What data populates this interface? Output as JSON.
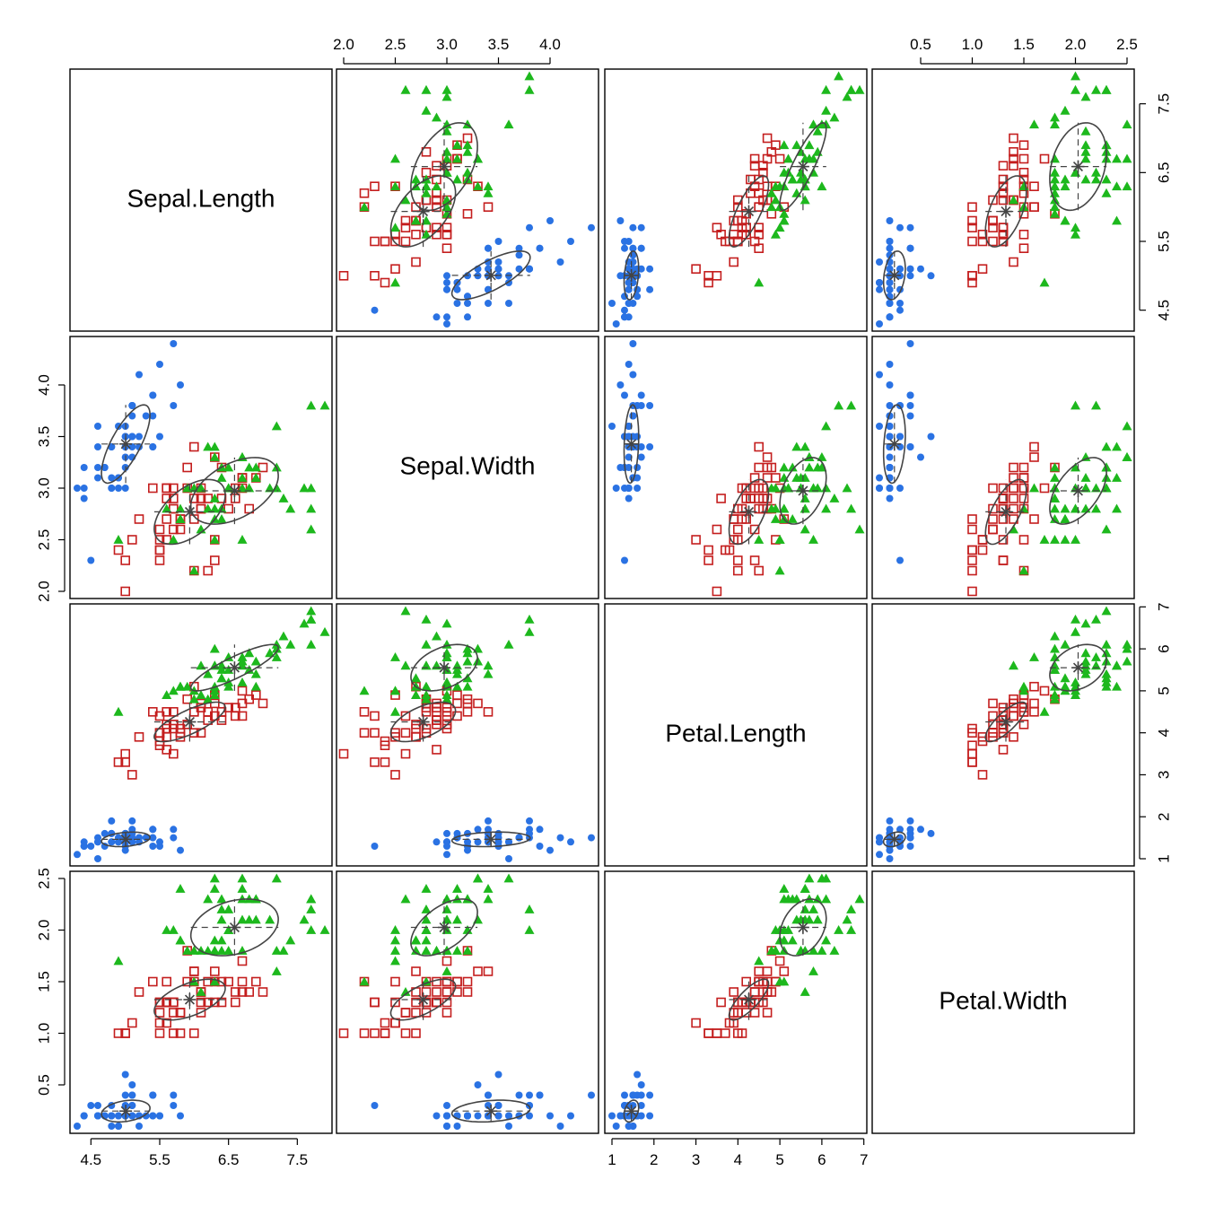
{
  "chart_data": {
    "type": "scatter-matrix",
    "variables": [
      "Sepal.Length",
      "Sepal.Width",
      "Petal.Length",
      "Petal.Width"
    ],
    "ranges": {
      "Sepal.Length": [
        4.3,
        7.9
      ],
      "Sepal.Width": [
        2.0,
        4.4
      ],
      "Petal.Length": [
        1.0,
        6.9
      ],
      "Petal.Width": [
        0.1,
        2.5
      ]
    },
    "ticks": {
      "Sepal.Length": [
        "4.5",
        "5.5",
        "6.5",
        "7.5"
      ],
      "Sepal.Width": [
        "2.0",
        "2.5",
        "3.0",
        "3.5",
        "4.0"
      ],
      "Petal.Length": [
        "1",
        "2",
        "3",
        "4",
        "5",
        "6",
        "7"
      ],
      "Petal.Width": [
        "0.5",
        "1.0",
        "1.5",
        "2.0",
        "2.5"
      ]
    },
    "axis_placement": {
      "Sepal.Length": [
        "bottom",
        "right"
      ],
      "Sepal.Width": [
        "top",
        "left"
      ],
      "Petal.Length": [
        "bottom",
        "right"
      ],
      "Petal.Width": [
        "top",
        "left"
      ]
    },
    "grid": false,
    "legend": "none",
    "series": [
      {
        "marker": "filled-circle",
        "color": "#2A72E3",
        "centroid": [
          5.006,
          3.428,
          1.462,
          0.246
        ],
        "points": [
          [
            5.1,
            3.5,
            1.4,
            0.2
          ],
          [
            4.9,
            3.0,
            1.4,
            0.2
          ],
          [
            4.7,
            3.2,
            1.3,
            0.2
          ],
          [
            4.6,
            3.1,
            1.5,
            0.2
          ],
          [
            5.0,
            3.6,
            1.4,
            0.2
          ],
          [
            5.4,
            3.9,
            1.7,
            0.4
          ],
          [
            4.6,
            3.4,
            1.4,
            0.3
          ],
          [
            5.0,
            3.4,
            1.5,
            0.2
          ],
          [
            4.4,
            2.9,
            1.4,
            0.2
          ],
          [
            4.9,
            3.1,
            1.5,
            0.1
          ],
          [
            5.4,
            3.7,
            1.5,
            0.2
          ],
          [
            4.8,
            3.4,
            1.6,
            0.2
          ],
          [
            4.8,
            3.0,
            1.4,
            0.1
          ],
          [
            4.3,
            3.0,
            1.1,
            0.1
          ],
          [
            5.8,
            4.0,
            1.2,
            0.2
          ],
          [
            5.7,
            4.4,
            1.5,
            0.4
          ],
          [
            5.4,
            3.9,
            1.3,
            0.4
          ],
          [
            5.1,
            3.5,
            1.4,
            0.3
          ],
          [
            5.7,
            3.8,
            1.7,
            0.3
          ],
          [
            5.1,
            3.8,
            1.5,
            0.3
          ],
          [
            5.4,
            3.4,
            1.7,
            0.2
          ],
          [
            5.1,
            3.7,
            1.5,
            0.4
          ],
          [
            4.6,
            3.6,
            1.0,
            0.2
          ],
          [
            5.1,
            3.3,
            1.7,
            0.5
          ],
          [
            4.8,
            3.4,
            1.9,
            0.2
          ],
          [
            5.0,
            3.0,
            1.6,
            0.2
          ],
          [
            5.0,
            3.4,
            1.6,
            0.4
          ],
          [
            5.2,
            3.5,
            1.5,
            0.2
          ],
          [
            5.2,
            3.4,
            1.4,
            0.2
          ],
          [
            4.7,
            3.2,
            1.6,
            0.2
          ],
          [
            4.8,
            3.1,
            1.6,
            0.2
          ],
          [
            5.4,
            3.4,
            1.5,
            0.4
          ],
          [
            5.2,
            4.1,
            1.5,
            0.1
          ],
          [
            5.5,
            4.2,
            1.4,
            0.2
          ],
          [
            4.9,
            3.1,
            1.5,
            0.2
          ],
          [
            5.0,
            3.2,
            1.2,
            0.2
          ],
          [
            5.5,
            3.5,
            1.3,
            0.2
          ],
          [
            4.9,
            3.6,
            1.4,
            0.1
          ],
          [
            4.4,
            3.0,
            1.3,
            0.2
          ],
          [
            5.1,
            3.4,
            1.5,
            0.2
          ],
          [
            5.0,
            3.5,
            1.3,
            0.3
          ],
          [
            4.5,
            2.3,
            1.3,
            0.3
          ],
          [
            4.4,
            3.2,
            1.3,
            0.2
          ],
          [
            5.0,
            3.5,
            1.6,
            0.6
          ],
          [
            5.1,
            3.8,
            1.9,
            0.4
          ],
          [
            4.8,
            3.0,
            1.4,
            0.3
          ],
          [
            5.1,
            3.8,
            1.6,
            0.2
          ],
          [
            4.6,
            3.2,
            1.4,
            0.2
          ],
          [
            5.3,
            3.7,
            1.5,
            0.2
          ],
          [
            5.0,
            3.3,
            1.4,
            0.2
          ]
        ]
      },
      {
        "marker": "open-square",
        "color": "#C41E1E",
        "centroid": [
          5.936,
          2.77,
          4.26,
          1.326
        ],
        "points": [
          [
            7.0,
            3.2,
            4.7,
            1.4
          ],
          [
            6.4,
            3.2,
            4.5,
            1.5
          ],
          [
            6.9,
            3.1,
            4.9,
            1.5
          ],
          [
            5.5,
            2.3,
            4.0,
            1.3
          ],
          [
            6.5,
            2.8,
            4.6,
            1.5
          ],
          [
            5.7,
            2.8,
            4.5,
            1.3
          ],
          [
            6.3,
            3.3,
            4.7,
            1.6
          ],
          [
            4.9,
            2.4,
            3.3,
            1.0
          ],
          [
            6.6,
            2.9,
            4.6,
            1.3
          ],
          [
            5.2,
            2.7,
            3.9,
            1.4
          ],
          [
            5.0,
            2.0,
            3.5,
            1.0
          ],
          [
            5.9,
            3.0,
            4.2,
            1.5
          ],
          [
            6.0,
            2.2,
            4.0,
            1.0
          ],
          [
            6.1,
            2.9,
            4.7,
            1.4
          ],
          [
            5.6,
            2.9,
            3.6,
            1.3
          ],
          [
            6.7,
            3.1,
            4.4,
            1.4
          ],
          [
            5.6,
            3.0,
            4.5,
            1.5
          ],
          [
            5.8,
            2.7,
            4.1,
            1.0
          ],
          [
            6.2,
            2.2,
            4.5,
            1.5
          ],
          [
            5.6,
            2.5,
            3.9,
            1.1
          ],
          [
            5.9,
            3.2,
            4.8,
            1.8
          ],
          [
            6.1,
            2.8,
            4.0,
            1.3
          ],
          [
            6.3,
            2.5,
            4.9,
            1.5
          ],
          [
            6.1,
            2.8,
            4.7,
            1.2
          ],
          [
            6.4,
            2.9,
            4.3,
            1.3
          ],
          [
            6.6,
            3.0,
            4.4,
            1.4
          ],
          [
            6.8,
            2.8,
            4.8,
            1.4
          ],
          [
            6.7,
            3.0,
            5.0,
            1.7
          ],
          [
            6.0,
            2.9,
            4.5,
            1.5
          ],
          [
            5.7,
            2.6,
            3.5,
            1.0
          ],
          [
            5.5,
            2.4,
            3.8,
            1.1
          ],
          [
            5.5,
            2.4,
            3.7,
            1.0
          ],
          [
            5.8,
            2.7,
            3.9,
            1.2
          ],
          [
            6.0,
            2.7,
            5.1,
            1.6
          ],
          [
            5.4,
            3.0,
            4.5,
            1.5
          ],
          [
            6.0,
            3.4,
            4.5,
            1.6
          ],
          [
            6.7,
            3.1,
            4.7,
            1.5
          ],
          [
            6.3,
            2.3,
            4.4,
            1.3
          ],
          [
            5.6,
            3.0,
            4.1,
            1.3
          ],
          [
            5.5,
            2.5,
            4.0,
            1.3
          ],
          [
            5.5,
            2.6,
            4.4,
            1.2
          ],
          [
            6.1,
            3.0,
            4.6,
            1.4
          ],
          [
            5.8,
            2.6,
            4.0,
            1.2
          ],
          [
            5.0,
            2.3,
            3.3,
            1.0
          ],
          [
            5.6,
            2.7,
            4.2,
            1.3
          ],
          [
            5.7,
            3.0,
            4.2,
            1.2
          ],
          [
            5.7,
            2.9,
            4.2,
            1.3
          ],
          [
            6.2,
            2.9,
            4.3,
            1.3
          ],
          [
            5.1,
            2.5,
            3.0,
            1.1
          ],
          [
            5.7,
            2.8,
            4.1,
            1.3
          ]
        ]
      },
      {
        "marker": "filled-triangle",
        "color": "#1DB81D",
        "centroid": [
          6.588,
          2.974,
          5.552,
          2.026
        ],
        "points": [
          [
            6.3,
            3.3,
            6.0,
            2.5
          ],
          [
            5.8,
            2.7,
            5.1,
            1.9
          ],
          [
            7.1,
            3.0,
            5.9,
            2.1
          ],
          [
            6.3,
            2.9,
            5.6,
            1.8
          ],
          [
            6.5,
            3.0,
            5.8,
            2.2
          ],
          [
            7.6,
            3.0,
            6.6,
            2.1
          ],
          [
            4.9,
            2.5,
            4.5,
            1.7
          ],
          [
            7.3,
            2.9,
            6.3,
            1.8
          ],
          [
            6.7,
            2.5,
            5.8,
            1.8
          ],
          [
            7.2,
            3.6,
            6.1,
            2.5
          ],
          [
            6.5,
            3.2,
            5.1,
            2.0
          ],
          [
            6.4,
            2.7,
            5.3,
            1.9
          ],
          [
            6.8,
            3.0,
            5.5,
            2.1
          ],
          [
            5.7,
            2.5,
            5.0,
            2.0
          ],
          [
            5.8,
            2.8,
            5.1,
            2.4
          ],
          [
            6.4,
            3.2,
            5.3,
            2.3
          ],
          [
            6.5,
            3.0,
            5.5,
            1.8
          ],
          [
            7.7,
            3.8,
            6.7,
            2.2
          ],
          [
            7.7,
            2.6,
            6.9,
            2.3
          ],
          [
            6.0,
            2.2,
            5.0,
            1.5
          ],
          [
            6.9,
            3.2,
            5.7,
            2.3
          ],
          [
            5.6,
            2.8,
            4.9,
            2.0
          ],
          [
            7.7,
            2.8,
            6.7,
            2.0
          ],
          [
            6.3,
            2.7,
            4.9,
            1.8
          ],
          [
            6.7,
            3.3,
            5.7,
            2.1
          ],
          [
            7.2,
            3.2,
            6.0,
            1.8
          ],
          [
            6.2,
            2.8,
            4.8,
            1.8
          ],
          [
            6.1,
            3.0,
            4.9,
            1.8
          ],
          [
            6.4,
            2.8,
            5.6,
            2.1
          ],
          [
            7.2,
            3.0,
            5.8,
            1.6
          ],
          [
            7.4,
            2.8,
            6.1,
            1.9
          ],
          [
            7.9,
            3.8,
            6.4,
            2.0
          ],
          [
            6.4,
            2.8,
            5.6,
            2.2
          ],
          [
            6.3,
            2.8,
            5.1,
            1.5
          ],
          [
            6.1,
            2.6,
            5.6,
            1.4
          ],
          [
            7.7,
            3.0,
            6.1,
            2.3
          ],
          [
            6.3,
            3.4,
            5.6,
            2.4
          ],
          [
            6.4,
            3.1,
            5.5,
            1.8
          ],
          [
            6.0,
            3.0,
            4.8,
            1.8
          ],
          [
            6.9,
            3.1,
            5.4,
            2.1
          ],
          [
            6.7,
            3.1,
            5.6,
            2.4
          ],
          [
            6.9,
            3.1,
            5.1,
            2.3
          ],
          [
            5.8,
            2.7,
            5.1,
            1.9
          ],
          [
            6.8,
            3.2,
            5.9,
            2.3
          ],
          [
            6.7,
            3.3,
            5.7,
            2.5
          ],
          [
            6.7,
            3.0,
            5.2,
            2.3
          ],
          [
            6.3,
            2.5,
            5.0,
            1.9
          ],
          [
            6.5,
            3.0,
            5.2,
            2.0
          ],
          [
            6.2,
            3.4,
            5.4,
            2.3
          ],
          [
            5.9,
            3.0,
            5.1,
            1.8
          ]
        ]
      }
    ],
    "overlay": {
      "centroid_marker": "asterisk",
      "color": "#444444",
      "ellipses": true,
      "crosshair_lines": "dashed"
    }
  }
}
